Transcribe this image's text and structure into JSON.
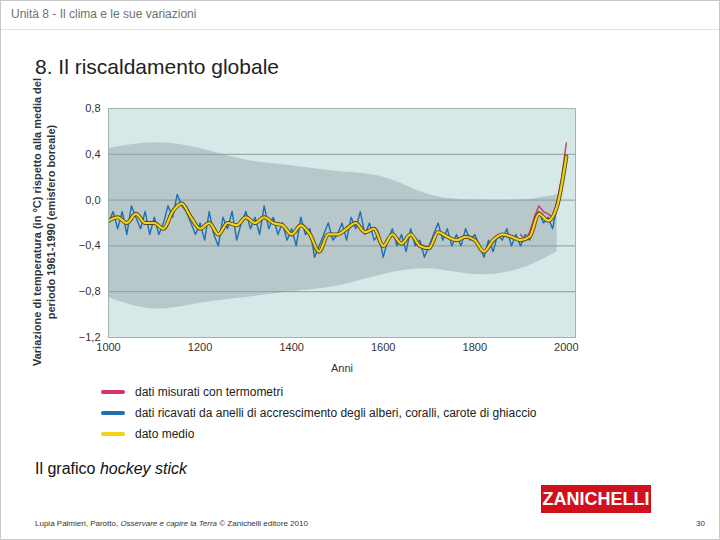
{
  "header": "Unità 8 - Il clima e le sue variazioni",
  "slide_title": "8. Il riscaldamento globale",
  "chart_data": {
    "type": "line",
    "y_label": "Variazione di temperatura (in °C) rispetto alla media del periodo 1961-1990 (emisfero boreale)",
    "x_label": "Anni",
    "xlim": [
      1000,
      2020
    ],
    "xticks": [
      1000,
      1200,
      1400,
      1600,
      1800,
      2000
    ],
    "ylim": [
      -1.2,
      0.8
    ],
    "yticks": [
      {
        "value": -1.2,
        "label": "−1,2"
      },
      {
        "value": -0.8,
        "label": "−0,8"
      },
      {
        "value": -0.4,
        "label": "−0,4"
      },
      {
        "value": 0.0,
        "label": "0,0"
      },
      {
        "value": 0.4,
        "label": "0,4"
      },
      {
        "value": 0.8,
        "label": "0,8"
      }
    ],
    "grid": true,
    "band": {
      "color": "#b3c2c4",
      "x": [
        1000,
        1100,
        1200,
        1300,
        1400,
        1500,
        1600,
        1700,
        1800,
        1900,
        1980
      ],
      "upper": [
        0.45,
        0.5,
        0.45,
        0.35,
        0.3,
        0.25,
        0.2,
        0.05,
        0.0,
        0.0,
        0.05
      ],
      "lower": [
        -0.85,
        -0.95,
        -0.9,
        -0.85,
        -0.8,
        -0.75,
        -0.65,
        -0.6,
        -0.65,
        -0.6,
        -0.45
      ]
    },
    "series": [
      {
        "name": "dati misurati con termometri",
        "color": "#d6336b",
        "x": [
          1900,
          1910,
          1920,
          1930,
          1940,
          1950,
          1960,
          1970,
          1980,
          1990,
          2000
        ],
        "values": [
          -0.3,
          -0.35,
          -0.28,
          -0.15,
          -0.05,
          -0.1,
          -0.12,
          -0.15,
          0.0,
          0.2,
          0.5
        ]
      },
      {
        "name": "dati ricavati da anelli di accrescimento degli alberi, coralli, carote di ghiaccio",
        "color": "#1f6fb4",
        "x": [
          1000,
          1010,
          1020,
          1030,
          1040,
          1050,
          1060,
          1070,
          1080,
          1090,
          1100,
          1110,
          1120,
          1130,
          1140,
          1150,
          1160,
          1170,
          1180,
          1190,
          1200,
          1210,
          1220,
          1230,
          1240,
          1250,
          1260,
          1270,
          1280,
          1290,
          1300,
          1310,
          1320,
          1330,
          1340,
          1350,
          1360,
          1370,
          1380,
          1390,
          1400,
          1410,
          1420,
          1430,
          1440,
          1450,
          1460,
          1470,
          1480,
          1490,
          1500,
          1510,
          1520,
          1530,
          1540,
          1550,
          1560,
          1570,
          1580,
          1590,
          1600,
          1610,
          1620,
          1630,
          1640,
          1650,
          1660,
          1670,
          1680,
          1690,
          1700,
          1710,
          1720,
          1730,
          1740,
          1750,
          1760,
          1770,
          1780,
          1790,
          1800,
          1810,
          1820,
          1830,
          1840,
          1850,
          1860,
          1870,
          1880,
          1890,
          1900,
          1910,
          1920,
          1930,
          1940,
          1950,
          1960,
          1970,
          1980
        ],
        "values": [
          -0.2,
          -0.1,
          -0.25,
          -0.1,
          -0.3,
          -0.05,
          -0.15,
          -0.25,
          -0.1,
          -0.3,
          -0.15,
          -0.3,
          -0.2,
          -0.05,
          -0.15,
          0.05,
          -0.05,
          -0.1,
          -0.2,
          -0.3,
          -0.2,
          -0.35,
          -0.1,
          -0.3,
          -0.4,
          -0.15,
          -0.25,
          -0.1,
          -0.35,
          -0.2,
          -0.1,
          -0.25,
          -0.15,
          -0.3,
          -0.05,
          -0.25,
          -0.15,
          -0.3,
          -0.2,
          -0.35,
          -0.25,
          -0.4,
          -0.15,
          -0.3,
          -0.25,
          -0.5,
          -0.4,
          -0.3,
          -0.2,
          -0.35,
          -0.3,
          -0.2,
          -0.35,
          -0.15,
          -0.25,
          -0.1,
          -0.3,
          -0.2,
          -0.35,
          -0.3,
          -0.5,
          -0.35,
          -0.25,
          -0.4,
          -0.3,
          -0.45,
          -0.25,
          -0.4,
          -0.35,
          -0.5,
          -0.4,
          -0.3,
          -0.2,
          -0.35,
          -0.25,
          -0.4,
          -0.3,
          -0.4,
          -0.25,
          -0.35,
          -0.3,
          -0.4,
          -0.5,
          -0.35,
          -0.45,
          -0.3,
          -0.35,
          -0.25,
          -0.4,
          -0.3,
          -0.4,
          -0.3,
          -0.35,
          -0.2,
          -0.1,
          -0.2,
          -0.15,
          -0.25,
          -0.05
        ]
      },
      {
        "name": "dato medio",
        "color": "#f2d21b",
        "x": [
          1000,
          1020,
          1040,
          1060,
          1080,
          1100,
          1120,
          1140,
          1160,
          1180,
          1200,
          1220,
          1240,
          1260,
          1280,
          1300,
          1320,
          1340,
          1360,
          1380,
          1400,
          1420,
          1440,
          1460,
          1480,
          1500,
          1520,
          1540,
          1560,
          1580,
          1600,
          1620,
          1640,
          1660,
          1680,
          1700,
          1720,
          1740,
          1760,
          1780,
          1800,
          1820,
          1840,
          1860,
          1880,
          1900,
          1920,
          1940,
          1960,
          1980,
          2000
        ],
        "values": [
          -0.18,
          -0.15,
          -0.2,
          -0.12,
          -0.2,
          -0.2,
          -0.25,
          -0.1,
          -0.03,
          -0.15,
          -0.25,
          -0.2,
          -0.3,
          -0.2,
          -0.22,
          -0.15,
          -0.2,
          -0.15,
          -0.2,
          -0.22,
          -0.3,
          -0.22,
          -0.3,
          -0.45,
          -0.3,
          -0.3,
          -0.25,
          -0.2,
          -0.28,
          -0.25,
          -0.4,
          -0.3,
          -0.38,
          -0.3,
          -0.4,
          -0.42,
          -0.28,
          -0.32,
          -0.35,
          -0.32,
          -0.35,
          -0.45,
          -0.35,
          -0.3,
          -0.32,
          -0.35,
          -0.32,
          -0.12,
          -0.18,
          -0.05,
          0.38
        ]
      }
    ]
  },
  "caption": {
    "text": "Il grafico",
    "emphasis": "hockey stick"
  },
  "logo": "ZANICHELLI",
  "footer": {
    "authors": "Lupia Palmieri, Parotto,",
    "book": "Osservare e capire la Terra",
    "publisher": "© Zanichelli editore 2010"
  },
  "page": 30
}
